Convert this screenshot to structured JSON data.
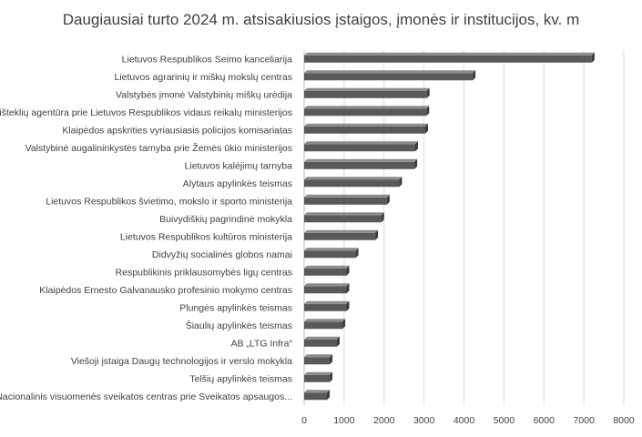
{
  "chart_data": {
    "type": "bar",
    "orientation": "horizontal",
    "title": "Daugiausiai turto 2024 m. atsisakiusios įstaigos, įmonės ir institucijos, kv. m",
    "xlabel": "",
    "ylabel": "",
    "xlim": [
      0,
      8000
    ],
    "xticks": [
      0,
      1000,
      2000,
      3000,
      4000,
      5000,
      6000,
      7000,
      8000
    ],
    "grid": true,
    "legend": "none",
    "bar_color": "#595959",
    "categories": [
      "Lietuvos Respublikos Seimo kanceliarija",
      "Lietuvos agrarinių ir miškų mokslų centras",
      "Valstybės įmonė Valstybinių miškų urėdija",
      "Turto išteklių agentūra prie Lietuvos Respublikos vidaus reikalų ministerijos",
      "Klaipėdos apskrities vyriausiasis policijos komisariatas",
      "Valstybinė augalininkystės tarnyba prie Žemės ūkio ministerijos",
      "Lietuvos kalėjimų tarnyba",
      "Alytaus apylinkės teismas",
      "Lietuvos Respublikos švietimo, mokslo ir sporto ministerija",
      "Buivydiškių pagrindinė mokykla",
      "Lietuvos Respublikos kultūros ministerija",
      "Didvyžių socialinės globos namai",
      "Respublikinis priklausomybės ligų centras",
      "Klaipėdos Ernesto Galvanausko profesinio mokymo centras",
      "Plungės apylinkės teismas",
      "Šiaulių apylinkės teismas",
      "AB „LTG Infra“",
      "Viešoji įstaiga Daugų technologijos ir verslo mokykla",
      "Telšių apylinkės teismas",
      "Nacionalinis visuomenės sveikatos centras prie Sveikatos apsaugos..."
    ],
    "values": [
      7200,
      4220,
      3070,
      3060,
      3030,
      2780,
      2760,
      2380,
      2070,
      1930,
      1780,
      1290,
      1060,
      1060,
      1060,
      960,
      820,
      640,
      640,
      570
    ]
  }
}
